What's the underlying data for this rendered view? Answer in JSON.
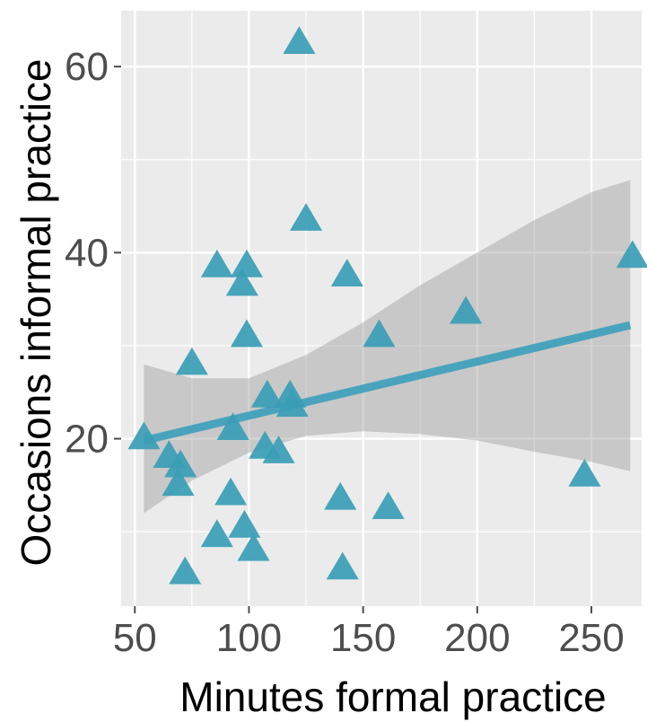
{
  "chart_data": {
    "type": "scatter",
    "xlabel": "Minutes formal practice",
    "ylabel": "Occasions informal practice",
    "xlim": [
      44,
      272
    ],
    "ylim": [
      2,
      66
    ],
    "xticks": [
      50,
      100,
      150,
      200,
      250
    ],
    "yticks": [
      20,
      40,
      60
    ],
    "xtick_labels": [
      "50",
      "100",
      "150",
      "200",
      "250"
    ],
    "ytick_labels": [
      "20",
      "40",
      "60"
    ],
    "grid": true,
    "legend": "none",
    "marker": "triangle",
    "colors": {
      "marker": "#3a9db5",
      "trend_line": "#4aa3bd",
      "confidence_band": "#9e9e9e",
      "panel": "#ebebeb",
      "grid": "#ffffff"
    },
    "points": [
      {
        "x": 122,
        "y": 62.5
      },
      {
        "x": 125,
        "y": 43.5
      },
      {
        "x": 86,
        "y": 38.5
      },
      {
        "x": 99,
        "y": 38.5
      },
      {
        "x": 97,
        "y": 36.5
      },
      {
        "x": 143,
        "y": 37.5
      },
      {
        "x": 268,
        "y": 39.5
      },
      {
        "x": 195,
        "y": 33.5
      },
      {
        "x": 99,
        "y": 31.0
      },
      {
        "x": 157,
        "y": 31.0
      },
      {
        "x": 75,
        "y": 28.0
      },
      {
        "x": 108,
        "y": 24.5
      },
      {
        "x": 118,
        "y": 24.5
      },
      {
        "x": 119,
        "y": 23.5
      },
      {
        "x": 93,
        "y": 21.0
      },
      {
        "x": 54,
        "y": 20.0
      },
      {
        "x": 107,
        "y": 19.0
      },
      {
        "x": 113,
        "y": 18.5
      },
      {
        "x": 65,
        "y": 18.0
      },
      {
        "x": 70,
        "y": 17.0
      },
      {
        "x": 69,
        "y": 15.0
      },
      {
        "x": 92,
        "y": 14.0
      },
      {
        "x": 140,
        "y": 13.5
      },
      {
        "x": 247,
        "y": 16.0
      },
      {
        "x": 161,
        "y": 12.5
      },
      {
        "x": 98,
        "y": 10.5
      },
      {
        "x": 86,
        "y": 9.5
      },
      {
        "x": 102,
        "y": 8.0
      },
      {
        "x": 72,
        "y": 5.5
      },
      {
        "x": 141,
        "y": 6.0
      }
    ],
    "trend_line": {
      "x": [
        54,
        267
      ],
      "y": [
        19.8,
        32.2
      ]
    },
    "confidence_band": {
      "x": [
        54,
        75,
        100,
        125,
        150,
        175,
        200,
        225,
        250,
        267
      ],
      "lower": [
        12.0,
        15.5,
        18.5,
        20.3,
        20.8,
        20.5,
        19.8,
        18.6,
        17.5,
        16.5
      ],
      "upper": [
        28.0,
        26.5,
        26.5,
        29.0,
        32.5,
        36.5,
        40.0,
        43.5,
        46.5,
        47.8
      ]
    }
  }
}
